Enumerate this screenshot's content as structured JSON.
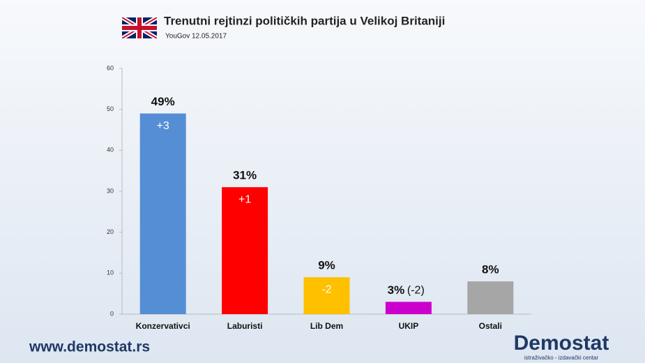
{
  "chart_data": {
    "type": "bar",
    "title": "Trenutni rejtinzi političkih partija u Velikoj Britaniji",
    "subtitle": "YouGov 12.05.2017",
    "categories": [
      "Konzervativci",
      "Laburisti",
      "Lib Dem",
      "UKIP",
      "Ostali"
    ],
    "values": [
      49,
      31,
      9,
      3,
      8
    ],
    "value_labels": [
      "49%",
      "31%",
      "9%",
      "3%",
      "8%"
    ],
    "change_labels": [
      "+3",
      "+1",
      "-2",
      "(-2)",
      null
    ],
    "colors": [
      "#558ed5",
      "#ff0000",
      "#ffc000",
      "#cc00cc",
      "#a6a6a6"
    ],
    "ylim": [
      0,
      60
    ],
    "yticks": [
      0,
      10,
      20,
      30,
      40,
      50,
      60
    ],
    "grid": false
  },
  "footer": {
    "website": "www.demostat.rs",
    "logo": "Demostat",
    "logo_tagline": "istraživačko - izdavački centar"
  }
}
